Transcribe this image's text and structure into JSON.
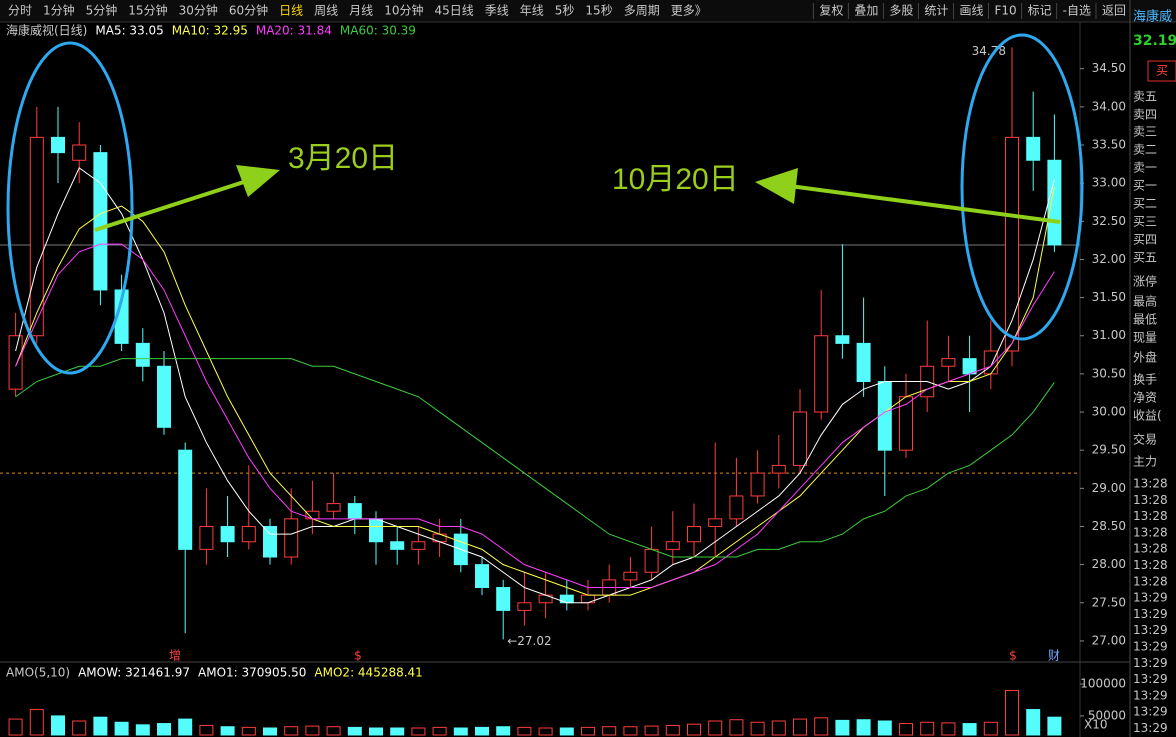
{
  "toolbar": {
    "left": [
      "分时",
      "1分钟",
      "5分钟",
      "15分钟",
      "30分钟",
      "60分钟",
      "日线",
      "周线",
      "月线",
      "10分钟",
      "45日线",
      "季线",
      "年线",
      "5秒",
      "15秒",
      "多周期",
      "更多》"
    ],
    "active": "日线",
    "right": [
      "复权",
      "叠加",
      "多股",
      "统计",
      "画线",
      "F10",
      "标记",
      "-自选",
      "返回"
    ]
  },
  "chart_data": {
    "type": "candlestick",
    "title": "海康威视(日线)",
    "ylim": [
      26.75,
      34.85
    ],
    "yticks": [
      {
        "value": 34.5,
        "label": "34.50"
      },
      {
        "value": 34,
        "label": "34.00"
      },
      {
        "value": 33.5,
        "label": "33.50"
      },
      {
        "value": 33,
        "label": "33.00"
      },
      {
        "value": 32.5,
        "label": "32.50"
      },
      {
        "value": 32,
        "label": "32.00"
      },
      {
        "value": 31.5,
        "label": "31.50"
      },
      {
        "value": 31,
        "label": "31.00"
      },
      {
        "value": 30.5,
        "label": "30.50"
      },
      {
        "value": 30,
        "label": "30.00"
      },
      {
        "value": 29.5,
        "label": "29.50"
      },
      {
        "value": 29,
        "label": "29.00"
      },
      {
        "value": 28.5,
        "label": "28.50"
      },
      {
        "value": 28,
        "label": "28.00"
      },
      {
        "value": 27.5,
        "label": "27.50"
      },
      {
        "value": 27,
        "label": "27.00"
      }
    ],
    "up_color": "#ff3c3c",
    "down_color": "#54fcfc",
    "open": [
      30.3,
      31.0,
      33.6,
      33.3,
      33.4,
      31.6,
      30.9,
      30.6,
      29.5,
      28.2,
      28.5,
      28.3,
      28.5,
      28.1,
      28.6,
      28.7,
      28.8,
      28.6,
      28.3,
      28.2,
      28.3,
      28.4,
      28.0,
      27.7,
      27.4,
      27.5,
      27.6,
      27.5,
      27.6,
      27.8,
      27.9,
      28.2,
      28.3,
      28.5,
      28.6,
      28.9,
      29.2,
      29.3,
      30.0,
      31.0,
      30.9,
      30.4,
      29.5,
      30.2,
      30.6,
      30.7,
      30.5,
      30.8,
      33.6,
      33.3
    ],
    "high": [
      31.3,
      34.0,
      34.0,
      33.8,
      33.5,
      31.8,
      31.1,
      30.8,
      29.6,
      29.0,
      28.9,
      29.3,
      28.6,
      29.0,
      29.1,
      29.2,
      28.9,
      28.7,
      28.5,
      28.5,
      28.6,
      28.6,
      28.1,
      27.8,
      27.9,
      27.9,
      27.8,
      27.8,
      28.0,
      28.1,
      28.5,
      28.7,
      28.8,
      29.6,
      29.4,
      29.5,
      29.7,
      30.3,
      31.6,
      32.2,
      31.5,
      30.6,
      30.5,
      31.2,
      31.0,
      31.0,
      31.2,
      34.78,
      34.2,
      33.9
    ],
    "low": [
      30.2,
      30.9,
      33.0,
      33.0,
      31.4,
      30.8,
      30.4,
      29.7,
      27.1,
      28.0,
      28.1,
      28.2,
      28.0,
      28.0,
      28.4,
      28.6,
      28.4,
      28.0,
      28.0,
      28.0,
      28.1,
      27.9,
      27.6,
      27.02,
      27.2,
      27.3,
      27.4,
      27.4,
      27.5,
      27.7,
      27.8,
      28.0,
      28.1,
      28.1,
      28.5,
      28.8,
      29.0,
      29.2,
      29.9,
      30.7,
      30.2,
      28.9,
      29.4,
      30.0,
      30.4,
      30.0,
      30.3,
      30.6,
      32.9,
      32.1
    ],
    "close": [
      31.0,
      33.6,
      33.4,
      33.5,
      31.6,
      30.9,
      30.6,
      29.8,
      28.2,
      28.5,
      28.3,
      28.5,
      28.1,
      28.6,
      28.7,
      28.8,
      28.6,
      28.3,
      28.2,
      28.3,
      28.4,
      28.0,
      27.7,
      27.4,
      27.5,
      27.6,
      27.5,
      27.6,
      27.8,
      27.9,
      28.2,
      28.3,
      28.5,
      28.6,
      28.9,
      29.2,
      29.3,
      30.0,
      31.0,
      30.9,
      30.4,
      29.5,
      30.2,
      30.6,
      30.7,
      30.5,
      30.8,
      33.6,
      33.3,
      32.19
    ],
    "series": [
      {
        "label": "MA5: 33.05",
        "color": "#ffffff",
        "values": [
          30.8,
          31.9,
          32.6,
          33.2,
          33.0,
          32.6,
          32.0,
          31.3,
          30.2,
          29.6,
          29.1,
          28.7,
          28.4,
          28.4,
          28.5,
          28.5,
          28.6,
          28.6,
          28.5,
          28.4,
          28.3,
          28.2,
          28.1,
          27.9,
          27.7,
          27.6,
          27.5,
          27.5,
          27.6,
          27.7,
          27.8,
          28.0,
          28.1,
          28.3,
          28.5,
          28.7,
          28.9,
          29.2,
          29.7,
          30.1,
          30.3,
          30.4,
          30.4,
          30.4,
          30.3,
          30.4,
          30.6,
          31.2,
          32.0,
          33.05
        ]
      },
      {
        "label": "MA10: 32.95",
        "color": "#ffff4a",
        "values": [
          30.6,
          31.3,
          31.9,
          32.4,
          32.6,
          32.7,
          32.5,
          32.1,
          31.4,
          30.8,
          30.2,
          29.7,
          29.2,
          28.9,
          28.6,
          28.5,
          28.5,
          28.5,
          28.5,
          28.5,
          28.4,
          28.3,
          28.2,
          28.0,
          27.9,
          27.8,
          27.7,
          27.6,
          27.6,
          27.6,
          27.7,
          27.8,
          27.9,
          28.1,
          28.3,
          28.5,
          28.7,
          28.9,
          29.2,
          29.5,
          29.8,
          30.0,
          30.2,
          30.3,
          30.4,
          30.4,
          30.5,
          30.9,
          31.5,
          32.95
        ]
      },
      {
        "label": "MA20: 31.84",
        "color": "#ff3cff",
        "values": [
          30.6,
          31.2,
          31.8,
          32.1,
          32.2,
          32.2,
          32.0,
          31.6,
          31.0,
          30.4,
          29.9,
          29.4,
          29.0,
          28.7,
          28.6,
          28.6,
          28.6,
          28.6,
          28.6,
          28.6,
          28.5,
          28.5,
          28.4,
          28.2,
          28.0,
          27.9,
          27.8,
          27.7,
          27.7,
          27.7,
          27.7,
          27.8,
          27.9,
          28.0,
          28.2,
          28.4,
          28.7,
          29.0,
          29.3,
          29.6,
          29.8,
          30.0,
          30.1,
          30.3,
          30.4,
          30.5,
          30.6,
          30.9,
          31.4,
          31.84
        ]
      },
      {
        "label": "MA60: 30.39",
        "color": "#3ccc3c",
        "values": [
          30.2,
          30.4,
          30.5,
          30.6,
          30.6,
          30.7,
          30.7,
          30.7,
          30.7,
          30.7,
          30.7,
          30.7,
          30.7,
          30.7,
          30.6,
          30.6,
          30.5,
          30.4,
          30.3,
          30.2,
          30.0,
          29.8,
          29.6,
          29.4,
          29.2,
          29.0,
          28.8,
          28.6,
          28.4,
          28.3,
          28.2,
          28.1,
          28.1,
          28.1,
          28.1,
          28.2,
          28.2,
          28.3,
          28.3,
          28.4,
          28.6,
          28.7,
          28.9,
          29.0,
          29.2,
          29.3,
          29.5,
          29.7,
          30.0,
          30.39
        ]
      }
    ],
    "last_price_line": 32.19,
    "dashed_line": 29.2,
    "dashed_color": "#e08a1e",
    "high_label": "34.78",
    "low_label": "←27.02",
    "markers": [
      "增",
      "$",
      "$",
      "财"
    ],
    "annotations": [
      "3月20日",
      "10月20日"
    ]
  },
  "volume": {
    "header": [
      "AMO(5,10)",
      "AMOW: 321461.97",
      "AMO1: 370905.50",
      "AMO2: 445288.41"
    ],
    "header_colors": [
      "#c8c8c8",
      "#ffffff",
      "#ffffff",
      "#ffff4a"
    ],
    "ylim": [
      20000,
      130000
    ],
    "yticks": [
      100000,
      50000
    ],
    "scale_label": "X10",
    "values": [
      45000,
      60000,
      50000,
      42000,
      48000,
      40000,
      36000,
      38000,
      45000,
      35000,
      33000,
      32000,
      31000,
      33000,
      34000,
      33000,
      32000,
      31000,
      31000,
      31000,
      32000,
      31000,
      32000,
      33000,
      32000,
      31000,
      31000,
      32000,
      33000,
      33000,
      34000,
      35000,
      37000,
      42000,
      44000,
      40000,
      42000,
      45000,
      47000,
      43000,
      44000,
      42000,
      38000,
      40000,
      39000,
      38000,
      40000,
      90000,
      60000,
      48000
    ]
  },
  "side": {
    "name": "海康威",
    "price": "32.19",
    "button": "买",
    "labels": [
      "卖五",
      "卖四",
      "卖三",
      "卖二",
      "卖一",
      "买一",
      "买二",
      "买三",
      "买四",
      "买五",
      "涨停",
      "最高",
      "最低",
      "现量",
      "外盘",
      "换手",
      "净资",
      "收益(",
      "交易",
      "主力"
    ],
    "times": [
      "13:28",
      "13:28",
      "13:28",
      "13:28",
      "13:28",
      "13:28",
      "13:28",
      "13:29",
      "13:29",
      "13:29",
      "13:29",
      "13:29",
      "13:29",
      "13:29",
      "13:29",
      "13:29"
    ]
  }
}
